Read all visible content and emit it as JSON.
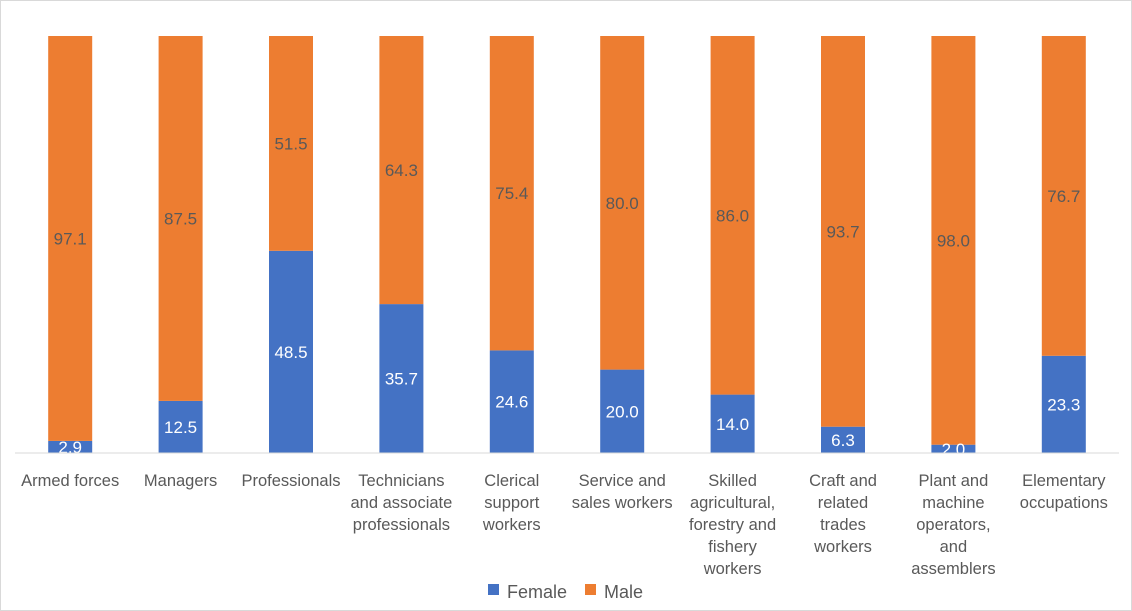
{
  "chart_data": {
    "type": "bar",
    "stacked": true,
    "percent_stacked": true,
    "categories": [
      [
        "Armed forces"
      ],
      [
        "Managers"
      ],
      [
        "Professionals"
      ],
      [
        "Technicians",
        "and associate",
        "professionals"
      ],
      [
        "Clerical",
        "support",
        "workers"
      ],
      [
        "Service and",
        "sales workers"
      ],
      [
        "Skilled",
        "agricultural,",
        "forestry and",
        "fishery",
        "workers"
      ],
      [
        "Craft and",
        "related",
        "trades",
        "workers"
      ],
      [
        "Plant and",
        "machine",
        "operators,",
        "and",
        "assemblers"
      ],
      [
        "Elementary",
        "occupations"
      ]
    ],
    "series": [
      {
        "name": "Female",
        "color": "#4472c4",
        "label_color": "#ffffff",
        "values": [
          2.9,
          12.5,
          48.5,
          35.7,
          24.6,
          20.0,
          14.0,
          6.3,
          2.0,
          23.3
        ],
        "labels": [
          "2.9",
          "12.5",
          "48.5",
          "35.7",
          "24.6",
          "20.0",
          "14.0",
          "6.3",
          "2.0",
          "23.3"
        ]
      },
      {
        "name": "Male",
        "color": "#ed7d31",
        "label_color": "#595959",
        "values": [
          97.1,
          87.5,
          51.5,
          64.3,
          75.4,
          80.0,
          86.0,
          93.7,
          98.0,
          76.7
        ],
        "labels": [
          "97.1",
          "87.5",
          "51.5",
          "64.3",
          "75.4",
          "80.0",
          "86.0",
          "93.7",
          "98.0",
          "76.7"
        ]
      }
    ],
    "ylim": [
      0,
      100
    ],
    "grid": false,
    "legend": "bottom"
  }
}
